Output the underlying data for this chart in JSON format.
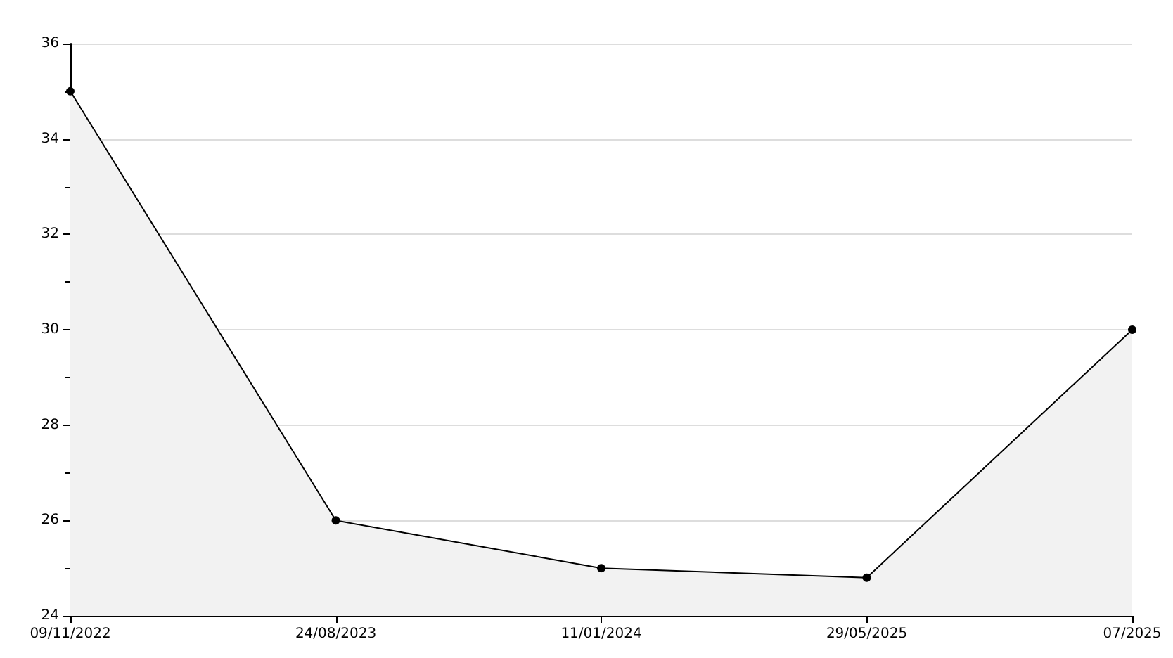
{
  "chart_data": {
    "type": "area",
    "categories": [
      "09/11/2022",
      "24/08/2023",
      "11/01/2024",
      "29/05/2025",
      "07/2025"
    ],
    "series": [
      {
        "color": "#000000",
        "values": [
          35,
          26,
          25,
          24.8,
          30
        ]
      }
    ],
    "ylim": [
      24,
      36
    ],
    "yticks": [
      24,
      26,
      28,
      30,
      32,
      34,
      36
    ],
    "grid": "y",
    "marker": "circle",
    "line_style": "solid"
  }
}
